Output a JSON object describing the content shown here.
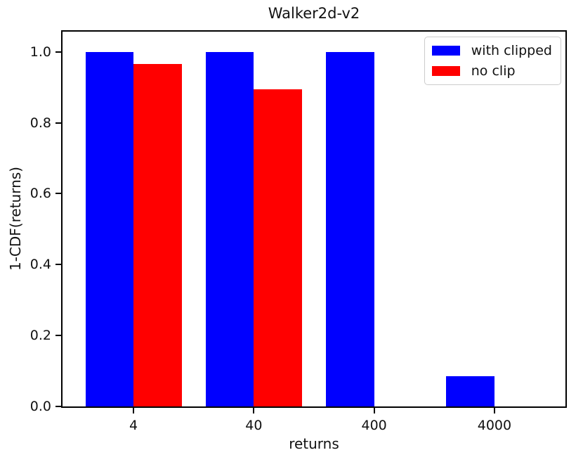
{
  "chart_data": {
    "type": "bar",
    "title": "Walker2d-v2",
    "xlabel": "returns",
    "ylabel": "1-CDF(returns)",
    "categories": [
      "4",
      "40",
      "400",
      "4000"
    ],
    "series": [
      {
        "name": "with clipped",
        "color": "#0000ff",
        "values": [
          1.0,
          1.0,
          1.0,
          0.085
        ]
      },
      {
        "name": "no clip",
        "color": "#ff0000",
        "values": [
          0.965,
          0.895,
          0.0,
          0.0
        ]
      }
    ],
    "yticks": [
      0.0,
      0.2,
      0.4,
      0.6,
      0.8,
      1.0
    ],
    "ylim": [
      0,
      1.057
    ],
    "xlim": [
      -0.59,
      3.59
    ],
    "bar_width": 0.4,
    "grid": false,
    "legend_position": "upper right"
  }
}
